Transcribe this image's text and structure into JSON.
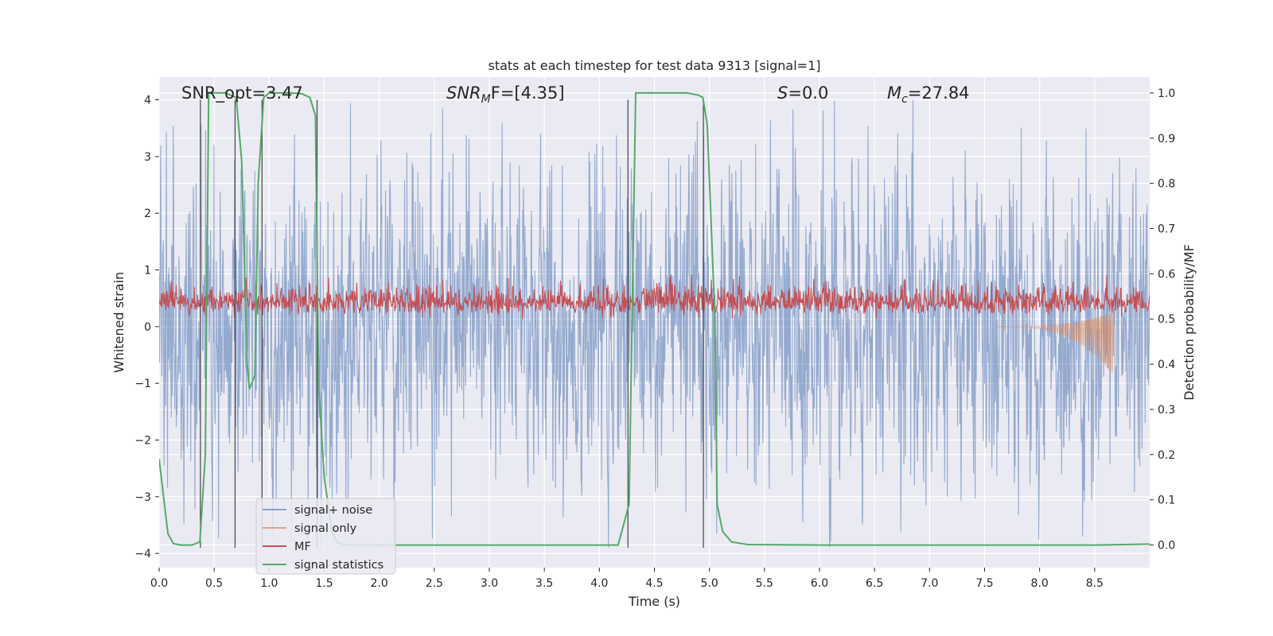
{
  "chart_data": {
    "type": "line",
    "title": "stats at each timestep for test data 9313 [signal=1]",
    "xlabel": "Time (s)",
    "ylabel": "Whitened strain",
    "ylabel_right": "Detection probability/MF",
    "xlim": [
      0.0,
      9.0
    ],
    "ylim": [
      -4.25,
      4.4
    ],
    "ylim_right": [
      -0.05,
      1.035
    ],
    "x_ticks": [
      0.0,
      0.5,
      1.0,
      1.5,
      2.0,
      2.5,
      3.0,
      3.5,
      4.0,
      4.5,
      5.0,
      5.5,
      6.0,
      6.5,
      7.0,
      7.5,
      8.0,
      8.5
    ],
    "x_tick_labels": [
      "0.0",
      "0.5",
      "1.0",
      "1.5",
      "2.0",
      "2.5",
      "3.0",
      "3.5",
      "4.0",
      "4.5",
      "5.0",
      "5.5",
      "6.0",
      "6.5",
      "7.0",
      "7.5",
      "8.0",
      "8.5"
    ],
    "y_ticks": [
      -4,
      -3,
      -2,
      -1,
      0,
      1,
      2,
      3,
      4
    ],
    "y_tick_labels": [
      "−4",
      "−3",
      "−2",
      "−1",
      "0",
      "1",
      "2",
      "3",
      "4"
    ],
    "y_ticks_right": [
      0.0,
      0.1,
      0.2,
      0.3,
      0.4,
      0.5,
      0.6,
      0.7,
      0.8,
      0.9,
      1.0
    ],
    "y_tick_labels_right": [
      "0.0",
      "0.1",
      "0.2",
      "0.3",
      "0.4",
      "0.5",
      "0.6",
      "0.7",
      "0.8",
      "0.9",
      "1.0"
    ],
    "annotations": [
      {
        "text": "SNR_opt=3.47",
        "kind": "plain"
      },
      {
        "prefix": "SNR",
        "sub": "M",
        "suffix": "F=[4.35]",
        "kind": "math"
      },
      {
        "prefix": "S",
        "sub": "",
        "suffix": "=0.0",
        "kind": "math"
      },
      {
        "prefix": "M",
        "sub": "c",
        "suffix": "=27.84",
        "kind": "math"
      }
    ],
    "legend": {
      "location": "lower-left",
      "entries": [
        {
          "label": "signal+ noise",
          "color": "#4c72b0"
        },
        {
          "label": "signal only",
          "color": "#dd8452"
        },
        {
          "label": "MF",
          "color": "#c44e52"
        },
        {
          "label": "signal statistics",
          "color": "#55a868"
        }
      ]
    },
    "series": [
      {
        "name": "signal+ noise",
        "color": "#4c72b0",
        "description": "whitened noisy strain, roughly within -3.9..4.0 around 0"
      },
      {
        "name": "signal only",
        "color": "#dd8452",
        "chirp_start": 7.6,
        "chirp_end": 8.67,
        "chirp_peak": 1.0,
        "chirp_min": -0.85
      },
      {
        "name": "MF",
        "color": "#c44e52",
        "baseline_right": 0.52,
        "description": "matched-filter output, mostly between 0.5 and 0.6 on right axis, peak ~0.6"
      },
      {
        "name": "signal statistics",
        "color": "#55a868",
        "axis": "right",
        "x": [
          0.0,
          0.08,
          0.13,
          0.2,
          0.3,
          0.37,
          0.42,
          0.45,
          0.5,
          0.6,
          0.7,
          0.75,
          0.8,
          0.82,
          0.87,
          0.9,
          0.95,
          1.0,
          1.1,
          1.2,
          1.3,
          1.37,
          1.42,
          1.45,
          1.5,
          1.57,
          1.62,
          1.7,
          2.0,
          3.0,
          4.0,
          4.17,
          4.27,
          4.33,
          4.45,
          4.6,
          4.8,
          4.9,
          4.94,
          4.98,
          5.05,
          5.07,
          5.12,
          5.2,
          5.35,
          6.0,
          7.0,
          8.0,
          8.5,
          9.0
        ],
        "y": [
          0.19,
          0.025,
          0.003,
          0.0,
          0.0,
          0.007,
          0.2,
          1.0,
          1.0,
          1.0,
          0.99,
          0.85,
          0.4,
          0.345,
          0.375,
          0.8,
          0.99,
          1.0,
          1.0,
          1.0,
          0.998,
          0.99,
          0.95,
          0.35,
          0.15,
          0.03,
          0.005,
          0.0,
          0.0,
          0.0,
          0.0,
          0.0,
          0.09,
          1.0,
          1.0,
          1.0,
          1.0,
          0.995,
          0.99,
          0.93,
          0.5,
          0.09,
          0.03,
          0.007,
          0.001,
          0.0,
          0.0,
          0.0,
          0.0,
          0.002
        ]
      }
    ],
    "vlines": [
      0.375,
      0.69,
      0.935,
      1.435,
      4.26,
      4.945
    ]
  }
}
